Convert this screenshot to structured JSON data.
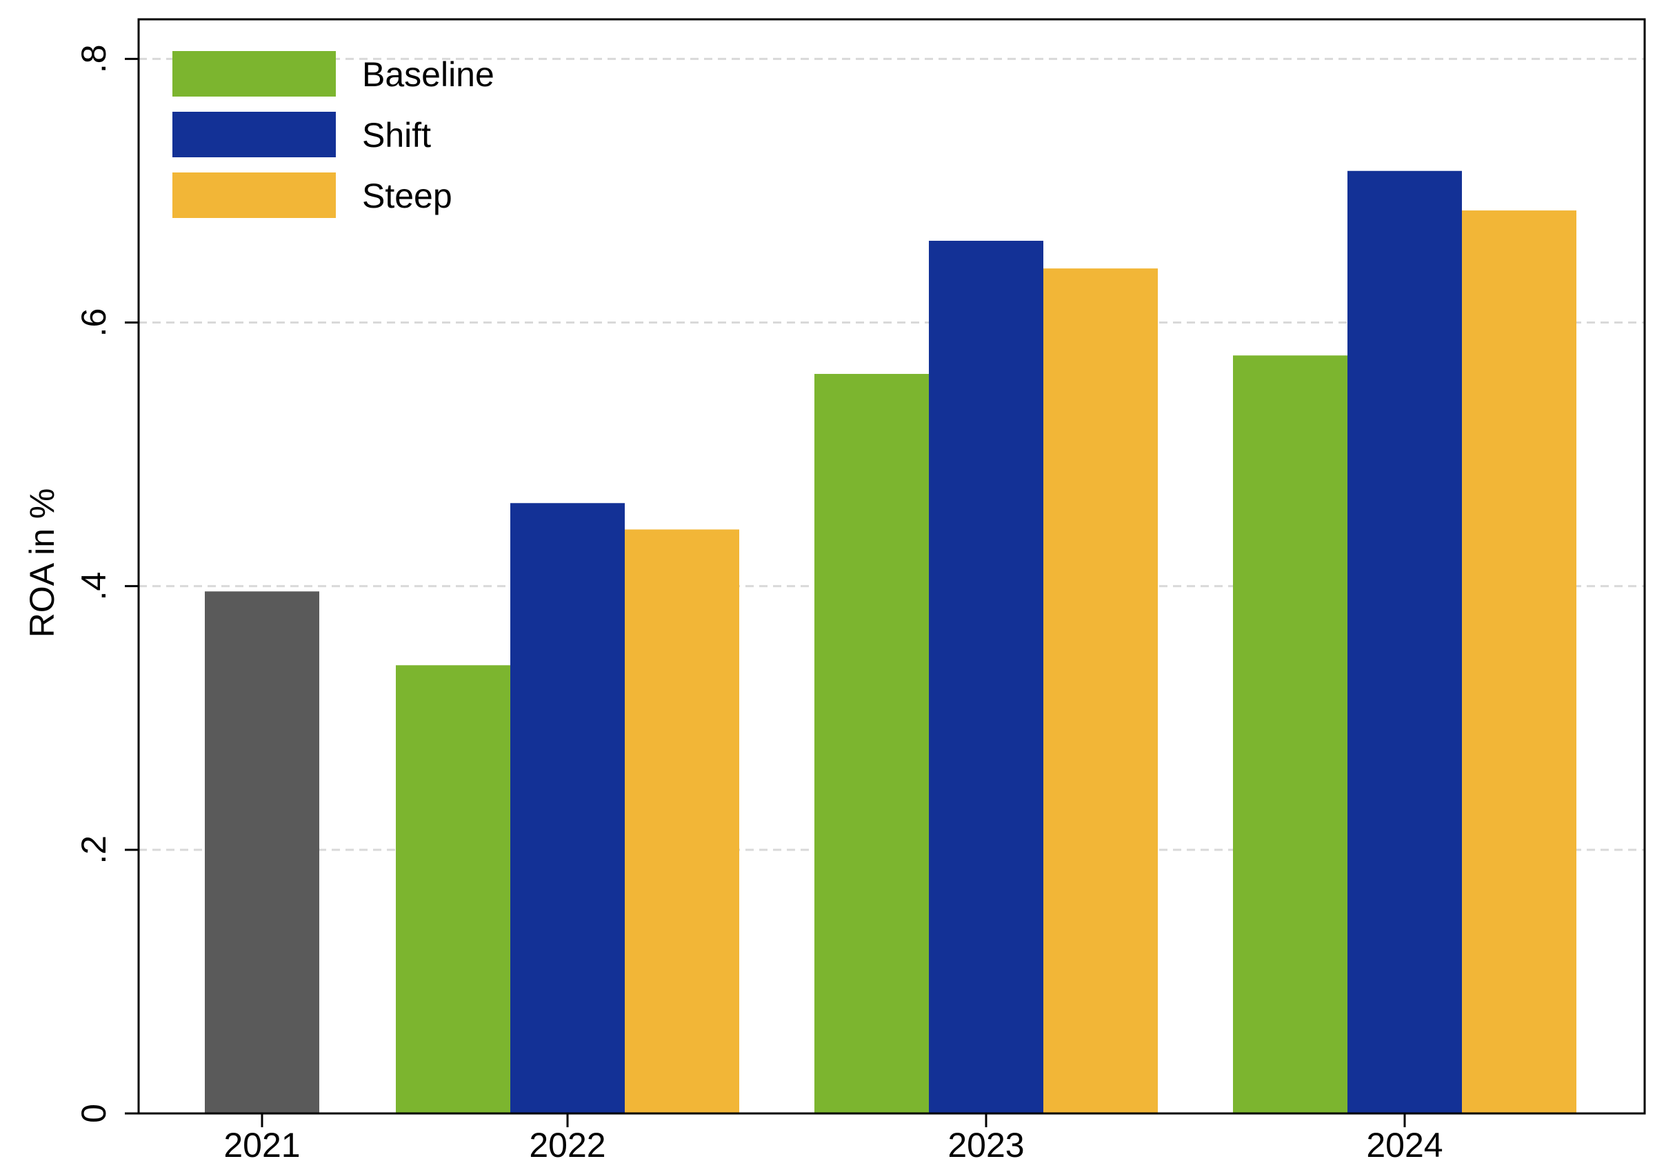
{
  "chart_data": {
    "type": "bar",
    "title": "",
    "xlabel": "",
    "ylabel": "ROA in %",
    "ylim": [
      0,
      0.83
    ],
    "grid": true,
    "legend_position": "top-left",
    "y_ticks": [
      {
        "value": 0,
        "label": "0"
      },
      {
        "value": 0.2,
        "label": ".2"
      },
      {
        "value": 0.4,
        "label": ".4"
      },
      {
        "value": 0.6,
        "label": ".6"
      },
      {
        "value": 0.8,
        "label": ".8"
      }
    ],
    "categories": [
      "2021",
      "2022",
      "2023",
      "2024"
    ],
    "historical": {
      "category": "2021",
      "value": 0.396,
      "color": "#5a5a5a"
    },
    "series": [
      {
        "name": "Baseline",
        "color": "#7cb52f",
        "values": [
          null,
          0.34,
          0.561,
          0.575
        ]
      },
      {
        "name": "Shift",
        "color": "#133196",
        "values": [
          null,
          0.463,
          0.662,
          0.715
        ]
      },
      {
        "name": "Steep",
        "color": "#f2b637",
        "values": [
          null,
          0.443,
          0.641,
          0.685
        ]
      }
    ]
  }
}
